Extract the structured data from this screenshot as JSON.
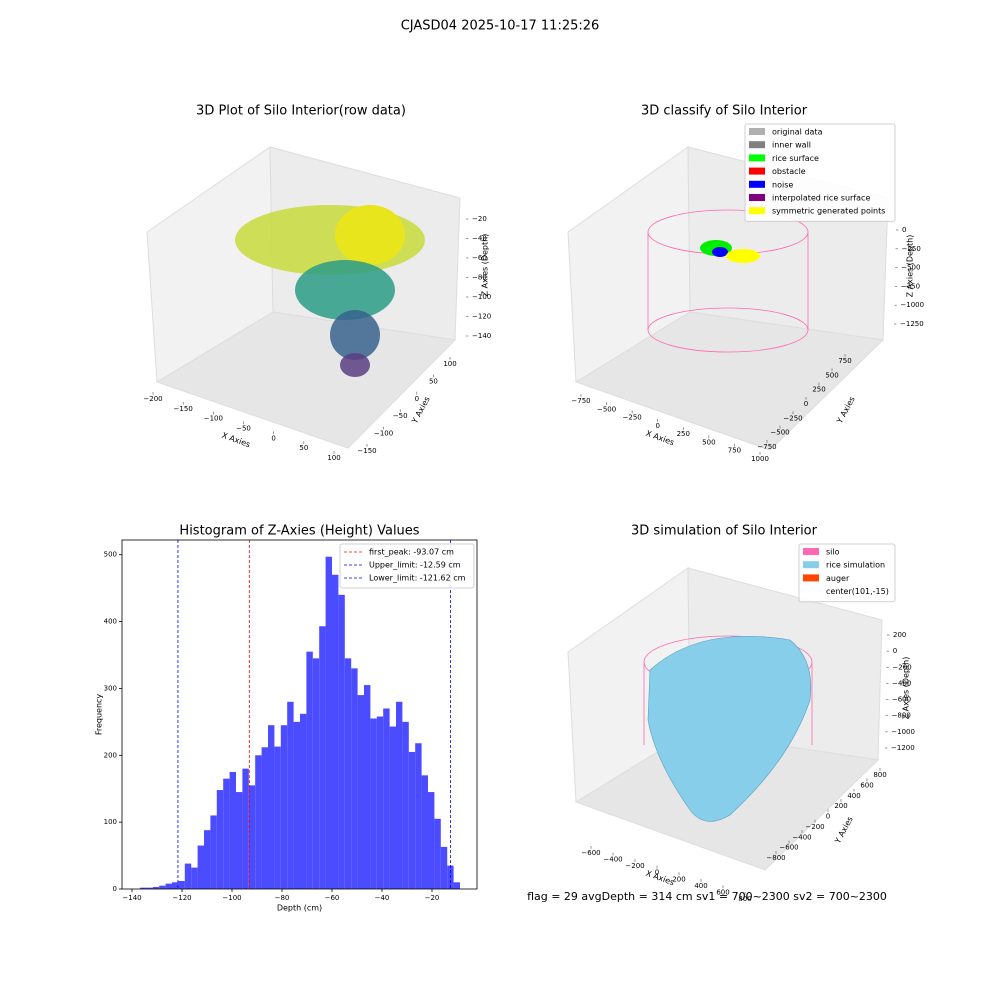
{
  "title": "CJASD04 2025-10-17 11:25:26",
  "footer": "flag = 29  avgDepth = 314 cm  sv1 = 700~2300  sv2 = 700~2300",
  "chart_data": [
    {
      "type": "scatter3d",
      "title": "3D Plot of Silo Interior(row data)",
      "xlabel": "X Axies",
      "ylabel": "Y Axies",
      "zlabel": "Z Axies (Depth)",
      "xlim": [
        -200,
        100
      ],
      "xticks": [
        {
          "value": -200,
          "label": "−200"
        },
        {
          "value": -150,
          "label": "−150"
        },
        {
          "value": -100,
          "label": "−100"
        },
        {
          "value": -50,
          "label": "−50"
        },
        0,
        50,
        100
      ],
      "ylim": [
        -150,
        100
      ],
      "yticks": [
        {
          "value": -150,
          "label": "−150"
        },
        {
          "value": -100,
          "label": "−100"
        },
        {
          "value": -50,
          "label": "−50"
        },
        0,
        50,
        100
      ],
      "zlim": [
        -140,
        -20
      ],
      "zticks": [
        {
          "value": -20,
          "label": "−20"
        },
        {
          "value": -40,
          "label": "−40"
        },
        {
          "value": -60,
          "label": "−60"
        },
        {
          "value": -80,
          "label": "−80"
        },
        {
          "value": -100,
          "label": "−100"
        },
        {
          "value": -120,
          "label": "−120"
        },
        {
          "value": -140,
          "label": "−140"
        }
      ]
    },
    {
      "type": "scatter3d",
      "title": "3D classify of Silo Interior",
      "xlabel": "X Axies",
      "ylabel": "Y Axies",
      "zlabel": "Z Axies (Depth)",
      "xlim": [
        -750,
        1000
      ],
      "xticks": [
        {
          "value": -750,
          "label": "−750"
        },
        {
          "value": -500,
          "label": "−500"
        },
        {
          "value": -250,
          "label": "−250"
        },
        0,
        250,
        500,
        750,
        1000
      ],
      "ylim": [
        -750,
        750
      ],
      "yticks": [
        {
          "value": -750,
          "label": "−750"
        },
        {
          "value": -500,
          "label": "−500"
        },
        {
          "value": -250,
          "label": "−250"
        },
        0,
        250,
        500,
        750
      ],
      "zlim": [
        -1250,
        0
      ],
      "zticks": [
        0,
        {
          "value": -250,
          "label": "−250"
        },
        {
          "value": -500,
          "label": "−500"
        },
        {
          "value": -750,
          "label": "−750"
        },
        {
          "value": -1000,
          "label": "−1000"
        },
        {
          "value": -1250,
          "label": "−1250"
        }
      ],
      "legend": [
        {
          "name": "original data",
          "color": "#b0b0b0"
        },
        {
          "name": "inner wall",
          "color": "#808080"
        },
        {
          "name": "rice surface",
          "color": "#00ff00"
        },
        {
          "name": "obstacle",
          "color": "#ff0000"
        },
        {
          "name": "noise",
          "color": "#0000ff"
        },
        {
          "name": "interpolated rice surface",
          "color": "#800080"
        },
        {
          "name": "symmetric generated points",
          "color": "#ffff00"
        }
      ]
    },
    {
      "type": "histogram",
      "title": "Histogram of Z-Axies (Height) Values",
      "xlabel": "Depth (cm)",
      "ylabel": "Frequency",
      "color": "#4b4bff",
      "bins": [
        -136.8,
        -134.24,
        -131.68,
        -129.12,
        -126.56,
        -124.0,
        -121.44,
        -118.88,
        -116.32,
        -113.76,
        -111.2,
        -108.64,
        -106.08,
        -103.52,
        -100.96,
        -98.4,
        -95.84,
        -93.28,
        -90.72,
        -88.16,
        -85.6,
        -83.04,
        -80.48,
        -77.92,
        -75.36,
        -72.8,
        -70.24,
        -67.68,
        -65.12,
        -62.56,
        -60.0,
        -57.44,
        -54.88,
        -52.32,
        -49.76,
        -47.2,
        -44.64,
        -42.08,
        -39.52,
        -36.96,
        -34.4,
        -31.84,
        -29.28,
        -26.72,
        -24.16,
        -21.6,
        -19.04,
        -16.48,
        -13.92,
        -11.36,
        -8.8
      ],
      "values": [
        2,
        2,
        3,
        5,
        8,
        10,
        12,
        38,
        32,
        65,
        88,
        110,
        148,
        165,
        175,
        145,
        180,
        155,
        200,
        212,
        245,
        213,
        245,
        280,
        250,
        262,
        355,
        345,
        393,
        497,
        470,
        440,
        345,
        330,
        290,
        305,
        255,
        258,
        270,
        243,
        280,
        250,
        205,
        218,
        170,
        145,
        105,
        63,
        35,
        10
      ],
      "lines": [
        {
          "label": "first_peak: -93.07 cm",
          "value": -93.07,
          "color": "#ff0000"
        },
        {
          "label": "Upper_limit: -12.59 cm",
          "value": -12.59,
          "color": "#0000ff"
        },
        {
          "label": "Lower_limit: -121.62 cm",
          "value": -121.62,
          "color": "#0000ff"
        }
      ],
      "xlim": [
        -144,
        -2
      ],
      "xticks": [
        {
          "value": -140,
          "label": "−140"
        },
        {
          "value": -120,
          "label": "−120"
        },
        {
          "value": -100,
          "label": "−100"
        },
        {
          "value": -80,
          "label": "−80"
        },
        {
          "value": -60,
          "label": "−60"
        },
        {
          "value": -40,
          "label": "−40"
        },
        {
          "value": -20,
          "label": "−20"
        }
      ],
      "ylim": [
        0,
        522
      ],
      "yticks": [
        0,
        100,
        200,
        300,
        400,
        500
      ]
    },
    {
      "type": "surface3d",
      "title": "3D simulation of Silo Interior",
      "xlabel": "X Axies",
      "ylabel": "Y Axies",
      "zlabel": "Z Axies (Depth)",
      "xlim": [
        -600,
        800
      ],
      "xticks": [
        {
          "value": -600,
          "label": "−600"
        },
        {
          "value": -400,
          "label": "−400"
        },
        {
          "value": -200,
          "label": "−200"
        },
        0,
        200,
        400,
        600,
        800
      ],
      "ylim": [
        -800,
        800
      ],
      "yticks": [
        {
          "value": -800,
          "label": "−800"
        },
        {
          "value": -600,
          "label": "−600"
        },
        {
          "value": -400,
          "label": "−400"
        },
        {
          "value": -200,
          "label": "−200"
        },
        0,
        200,
        400,
        600,
        800
      ],
      "zlim": [
        -1200,
        200
      ],
      "zticks": [
        200,
        0,
        {
          "value": -200,
          "label": "−200"
        },
        {
          "value": -400,
          "label": "−400"
        },
        {
          "value": -600,
          "label": "−600"
        },
        {
          "value": -800,
          "label": "−800"
        },
        {
          "value": -1000,
          "label": "−1000"
        },
        {
          "value": -1200,
          "label": "−1200"
        }
      ],
      "legend": [
        {
          "name": "silo",
          "color": "#ff69b4"
        },
        {
          "name": "rice simulation",
          "color": "#87ceeb"
        },
        {
          "name": "auger",
          "color": "#ff4500"
        },
        {
          "name": "center(101,-15)",
          "color": "#ffffff"
        }
      ]
    }
  ]
}
